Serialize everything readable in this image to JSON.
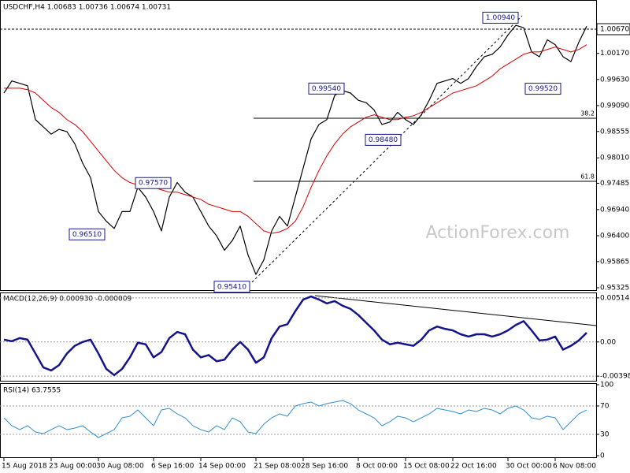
{
  "chart_data": [
    {
      "type": "line",
      "title": "USDCHF,H4  1.00683 1.00736 1.00674 1.00731",
      "watermark": "ActionForex.com",
      "categories": [
        "15 Aug 2018",
        null,
        null,
        null,
        null,
        null,
        "23 Aug 00:00",
        null,
        null,
        null,
        null,
        null,
        "30 Aug 08:00",
        null,
        null,
        null,
        null,
        null,
        null,
        "6 Sep 16:00",
        null,
        null,
        null,
        null,
        null,
        "14 Sep 00:00",
        null,
        null,
        null,
        null,
        null,
        null,
        "21 Sep 08:00",
        null,
        null,
        null,
        null,
        null,
        "28 Sep 16:00",
        null,
        null,
        null,
        null,
        null,
        null,
        "8 Oct 00:00",
        null,
        null,
        null,
        null,
        null,
        "15 Oct 08:00",
        null,
        null,
        null,
        null,
        null,
        "22 Oct 16:00",
        null,
        null,
        null,
        null,
        null,
        null,
        "30 Oct 00:00",
        null,
        null,
        null,
        null,
        null,
        "6 Nov 08:00",
        null,
        null,
        null,
        null
      ],
      "series": [
        {
          "color": "#000000",
          "values": [
            0.9935,
            0.996,
            0.9955,
            0.995,
            0.988,
            0.9865,
            0.985,
            0.986,
            0.9855,
            0.983,
            0.979,
            0.976,
            0.969,
            0.967,
            0.9655,
            0.969,
            0.969,
            0.974,
            0.972,
            0.969,
            0.965,
            0.972,
            0.975,
            0.973,
            0.972,
            0.969,
            0.966,
            0.964,
            0.961,
            0.963,
            0.966,
            0.96,
            0.956,
            0.959,
            0.965,
            0.968,
            0.966,
            0.972,
            0.978,
            0.984,
            0.987,
            0.988,
            0.993,
            0.994,
            0.9935,
            0.992,
            0.9915,
            0.99,
            0.987,
            0.9875,
            0.9895,
            0.988,
            0.987,
            0.989,
            0.992,
            0.9955,
            0.996,
            0.9965,
            0.9955,
            0.9965,
            0.999,
            1.001,
            1.0015,
            1.003,
            1.0055,
            1.0075,
            1.007,
            1.002,
            1.001,
            1.0045,
            1.0035,
            1.001,
            1.0,
            1.004,
            1.0073
          ]
        },
        {
          "color": "#d40000",
          "values": [
            0.9945,
            0.9945,
            0.9945,
            0.9942,
            0.9935,
            0.992,
            0.9905,
            0.9895,
            0.988,
            0.987,
            0.9855,
            0.9835,
            0.9815,
            0.9795,
            0.9775,
            0.976,
            0.975,
            0.9745,
            0.9745,
            0.974,
            0.9735,
            0.973,
            0.973,
            0.9725,
            0.972,
            0.9715,
            0.9705,
            0.97,
            0.9695,
            0.969,
            0.969,
            0.968,
            0.9665,
            0.965,
            0.9645,
            0.9648,
            0.9655,
            0.967,
            0.97,
            0.974,
            0.9775,
            0.9805,
            0.983,
            0.985,
            0.9865,
            0.9875,
            0.9885,
            0.989,
            0.9885,
            0.988,
            0.988,
            0.9885,
            0.9888,
            0.9895,
            0.9905,
            0.9915,
            0.9925,
            0.9935,
            0.994,
            0.9945,
            0.995,
            0.996,
            0.997,
            0.9985,
            0.9995,
            1.0005,
            1.0015,
            1.002,
            1.002,
            1.0025,
            1.003,
            1.0025,
            1.002,
            1.0025,
            1.0035
          ]
        }
      ],
      "ylim": [
        0.95276,
        1.01273
      ],
      "yticks": [
        {
          "value": 1.0067,
          "label": "1.00670"
        },
        {
          "value": 1.0017,
          "label": "1.00170"
        },
        {
          "value": 0.9963,
          "label": "0.99630"
        },
        {
          "value": 0.9909,
          "label": "0.99090"
        },
        0.98555,
        {
          "value": 0.9801,
          "label": "0.98010"
        },
        0.97485,
        {
          "value": 0.9694,
          "label": "0.96940"
        },
        {
          "value": 0.964,
          "label": "0.96400"
        },
        0.95865,
        0.95325
      ],
      "annotations": [
        {
          "value": 1.0094,
          "label": "1.00940"
        },
        {
          "value": 0.9954,
          "label": "0.99540"
        },
        {
          "value": 0.9848,
          "label": "0.98480"
        },
        {
          "value": 0.9757,
          "label": "0.97570"
        },
        {
          "value": 0.9651,
          "label": "0.96510"
        },
        {
          "value": 0.9541,
          "label": "0.95410"
        },
        {
          "value": 0.9952,
          "label": "0.99520"
        }
      ],
      "levels": [
        {
          "value": 0.98828,
          "label": "38.2"
        },
        {
          "value": 0.97524,
          "label": "61.8"
        }
      ]
    },
    {
      "type": "line",
      "title": "MACD(12,26,9) 0.000930 -0.000009",
      "series": [
        {
          "color": "#14148c",
          "values": [
            0.00027,
            9e-05,
            0.00045,
            0.00027,
            -0.00135,
            -0.00297,
            -0.00333,
            -0.0027,
            -0.00135,
            -0.00045,
            0,
            0.00027,
            -0.00135,
            -0.00315,
            -0.00387,
            -0.00315,
            -0.0018,
            -9e-05,
            -0.00027,
            -0.0018,
            -0.00117,
            0.00045,
            0.00117,
            0.0009,
            -0.0009,
            -0.0018,
            -0.00153,
            -0.00225,
            -0.00207,
            -0.0009,
            0,
            -0.0009,
            -0.00243,
            -0.0018,
            0.00045,
            0.0018,
            0.00207,
            0.0036,
            0.00495,
            0.00531,
            0.00495,
            0.0045,
            0.00477,
            0.00423,
            0.00387,
            0.00315,
            0.00225,
            0.00135,
            0.00027,
            -0.00027,
            -9e-05,
            -0.00027,
            -0.00045,
            0.00027,
            0.00135,
            0.0018,
            0.00153,
            0.00135,
            0.0009,
            0.00063,
            0.0009,
            0.0009,
            0.00063,
            0.0009,
            0.00135,
            0.00198,
            0.00243,
            0.00135,
            0.00018,
            0.00027,
            0.00063,
            -0.0009,
            -0.00045,
            0.00018,
            0.00108
          ]
        }
      ],
      "ylim": [
        -0.004531,
        0.005687
      ],
      "yticks": [
        0.005145,
        {
          "value": 0,
          "label": "0.00"
        },
        -0.003989
      ]
    },
    {
      "type": "line",
      "title": "RSI(14) 63.7555",
      "series": [
        {
          "color": "#2f8fd0",
          "values": [
            53.3,
            42.2,
            36.7,
            42.2,
            33.3,
            31.1,
            36.7,
            42.2,
            36.7,
            38.9,
            42.2,
            33.3,
            25.6,
            31.1,
            36.7,
            53.3,
            55.6,
            64.4,
            53.3,
            42.2,
            64.4,
            66.7,
            58.9,
            53.3,
            42.2,
            36.7,
            33.3,
            42.2,
            36.7,
            53.3,
            47.8,
            33.3,
            31.1,
            44.4,
            53.3,
            58.9,
            55.6,
            70,
            73.3,
            75.6,
            70,
            73.3,
            75.6,
            77.8,
            73.3,
            64.4,
            58.9,
            53.3,
            42.2,
            47.8,
            55.6,
            53.3,
            47.8,
            53.3,
            58.9,
            66.7,
            64.4,
            62.2,
            58.9,
            64.4,
            62.2,
            66.7,
            64.4,
            58.9,
            66.7,
            70,
            64.4,
            53.3,
            51.1,
            55.6,
            53.3,
            36.7,
            47.8,
            58.9,
            64.4
          ]
        }
      ],
      "ylim": [
        0,
        100
      ],
      "yticks": [
        100,
        70,
        30,
        0
      ]
    }
  ]
}
